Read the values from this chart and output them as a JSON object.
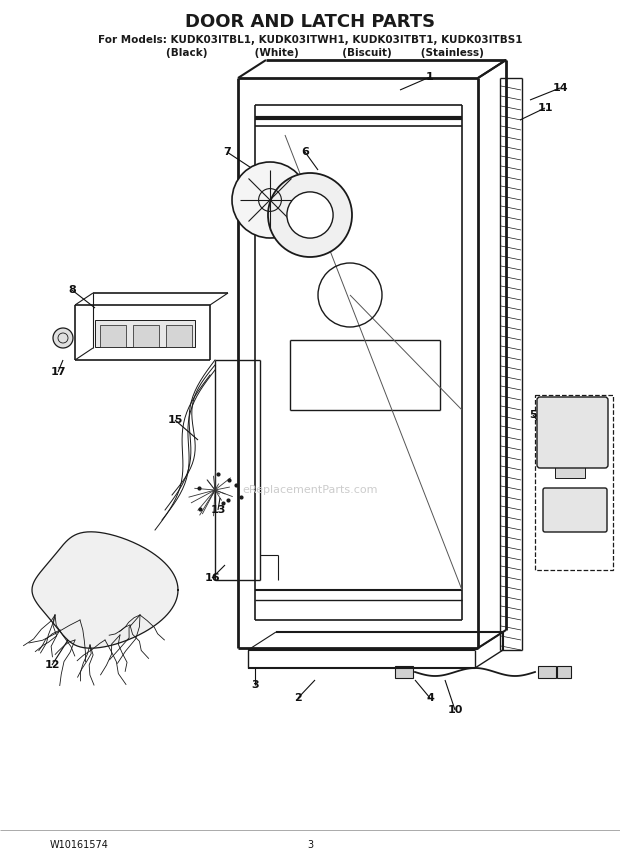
{
  "title": "DOOR AND LATCH PARTS",
  "subtitle": "For Models: KUDK03ITBL1, KUDK03ITWH1, KUDK03ITBT1, KUDK03ITBS1",
  "subtitle2": "        (Black)             (White)            (Biscuit)        (Stainless)",
  "footer_left": "W10161574",
  "footer_center": "3",
  "bg_color": "#ffffff",
  "lc": "#1a1a1a",
  "watermark": "eReplacementParts.com"
}
